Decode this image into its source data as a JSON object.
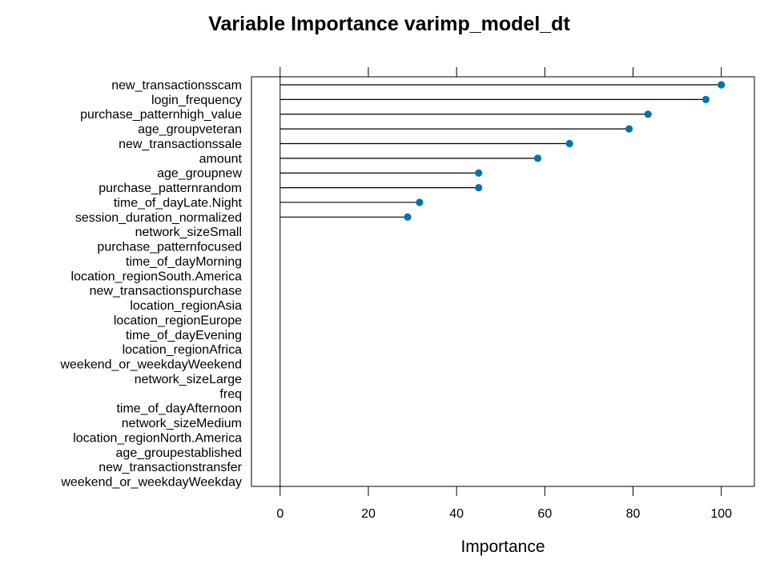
{
  "chart_data": {
    "type": "lollipop",
    "title": "Variable Importance varimp_model_dt",
    "xlabel": "Importance",
    "ylabel": "",
    "xlim": [
      -6.5,
      107.5
    ],
    "xticks": [
      0,
      20,
      40,
      60,
      80,
      100
    ],
    "grid": false,
    "legend": "none",
    "point_color": "#0072B2",
    "line_color": "#000000",
    "categories": [
      "new_transactionsscam",
      "login_frequency",
      "purchase_patternhigh_value",
      "age_groupveteran",
      "new_transactionssale",
      "amount",
      "age_groupnew",
      "purchase_patternrandom",
      "time_of_dayLate.Night",
      "session_duration_normalized",
      "network_sizeSmall",
      "purchase_patternfocused",
      "time_of_dayMorning",
      "location_regionSouth.America",
      "new_transactionspurchase",
      "location_regionAsia",
      "location_regionEurope",
      "time_of_dayEvening",
      "location_regionAfrica",
      "weekend_or_weekdayWeekend",
      "network_sizeLarge",
      "freq",
      "time_of_dayAfternoon",
      "network_sizeMedium",
      "location_regionNorth.America",
      "age_groupestablished",
      "new_transactionstransfer",
      "weekend_or_weekdayWeekday"
    ],
    "values": [
      100,
      96.5,
      83.4,
      79.1,
      65.6,
      58.4,
      45.0,
      45.0,
      31.6,
      28.9,
      0,
      0,
      0,
      0,
      0,
      0,
      0,
      0,
      0,
      0,
      0,
      0,
      0,
      0,
      0,
      0,
      0,
      0
    ]
  }
}
